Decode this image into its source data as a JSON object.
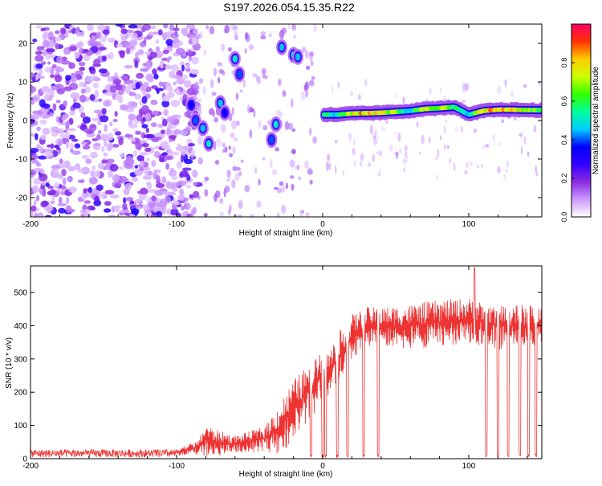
{
  "title": "S197.2026.054.15.35.R22",
  "chart_data": [
    {
      "type": "heatmap",
      "name": "spectrogram",
      "xlabel": "Height of straight line (km)",
      "ylabel": "Frequency (Hz)",
      "xlim": [
        -200,
        150
      ],
      "ylim": [
        -25,
        25
      ],
      "xticks": [
        -200,
        -100,
        0,
        100
      ],
      "xtick_labels": [
        "-200",
        "-100",
        "0",
        "100"
      ],
      "yticks": [
        -20,
        -10,
        0,
        10,
        20
      ],
      "ytick_labels": [
        "-20",
        "-10",
        "0",
        "10",
        "20"
      ],
      "colorbar": {
        "label": "Normalized spectral amplitude",
        "range": [
          0,
          1
        ],
        "ticks": [
          0.0,
          0.2,
          0.4,
          0.6,
          0.8
        ],
        "tick_labels": [
          "0.0",
          "0.2",
          "0.4",
          "0.6",
          "0.8"
        ],
        "colors": [
          "#ffffff",
          "#cc99ff",
          "#8a2be2",
          "#3300ff",
          "#0000ff",
          "#00ccff",
          "#00ff99",
          "#33ff00",
          "#ccff00",
          "#ffcc00",
          "#ff3300",
          "#ff0066"
        ]
      },
      "ridge": {
        "description_x": [
          2,
          10,
          20,
          40,
          60,
          70,
          80,
          90,
          95,
          100,
          110,
          120,
          130,
          140,
          150
        ],
        "frequency": [
          1.5,
          1.5,
          1.8,
          2.0,
          2.5,
          3.0,
          3.2,
          3.5,
          2.5,
          1.5,
          2.5,
          2.8,
          2.8,
          2.7,
          2.7
        ],
        "amplitude": [
          0.6,
          0.5,
          0.8,
          0.85,
          0.5,
          0.8,
          0.75,
          0.6,
          0.5,
          0.55,
          0.8,
          0.85,
          0.85,
          0.75,
          0.6
        ]
      },
      "blobs": [
        {
          "x": -90,
          "y": 4,
          "a": 0.35
        },
        {
          "x": -87,
          "y": 0,
          "a": 0.4
        },
        {
          "x": -82,
          "y": -2,
          "a": 0.45
        },
        {
          "x": -78,
          "y": -6,
          "a": 0.5
        },
        {
          "x": -70,
          "y": 4.5,
          "a": 0.45
        },
        {
          "x": -67,
          "y": 2,
          "a": 0.35
        },
        {
          "x": -60,
          "y": 16,
          "a": 0.5
        },
        {
          "x": -57,
          "y": 12,
          "a": 0.4
        },
        {
          "x": -35,
          "y": -5,
          "a": 0.4
        },
        {
          "x": -32,
          "y": -1,
          "a": 0.5
        },
        {
          "x": -28,
          "y": 19,
          "a": 0.45
        },
        {
          "x": -20,
          "y": 17,
          "a": 0.5
        },
        {
          "x": -17,
          "y": 16.5,
          "a": 0.45
        }
      ]
    },
    {
      "type": "line",
      "name": "snr",
      "xlabel": "Height of straight line (km)",
      "ylabel": "SNR (10 * v/v)",
      "xlim": [
        -200,
        150
      ],
      "ylim": [
        0,
        580
      ],
      "xticks": [
        -200,
        -100,
        0,
        100
      ],
      "xtick_labels": [
        "-200",
        "-100",
        "0",
        "100"
      ],
      "yticks": [
        0,
        100,
        200,
        300,
        400,
        500
      ],
      "ytick_labels": [
        "0",
        "100",
        "200",
        "300",
        "400",
        "500"
      ],
      "color": "#ee3333",
      "envelope": {
        "x": [
          -200,
          -120,
          -100,
          -85,
          -80,
          -75,
          -60,
          -40,
          -30,
          -20,
          -10,
          0,
          5,
          10,
          20,
          30,
          40,
          60,
          80,
          100,
          120,
          140,
          150
        ],
        "base": [
          15,
          15,
          20,
          35,
          60,
          50,
          45,
          60,
          90,
          150,
          200,
          250,
          260,
          300,
          370,
          400,
          400,
          400,
          410,
          420,
          400,
          400,
          400
        ],
        "spread": [
          8,
          8,
          12,
          25,
          60,
          50,
          30,
          45,
          90,
          110,
          100,
          90,
          80,
          90,
          80,
          70,
          70,
          80,
          85,
          80,
          80,
          80,
          70
        ]
      },
      "dropouts": [
        -8,
        0,
        2,
        10,
        17,
        28,
        38,
        112,
        120,
        127,
        135,
        141,
        146
      ],
      "peak_at": 104,
      "peak_value": 575
    }
  ]
}
